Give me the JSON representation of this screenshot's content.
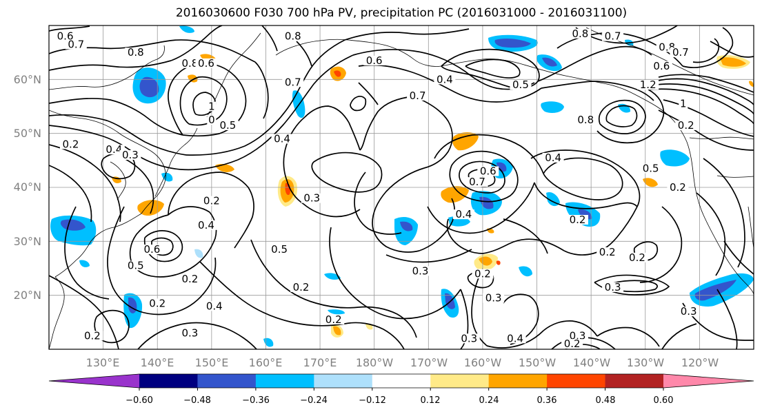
{
  "title": "2016030600 F030 700 hPa PV, precipitation PC (2016031000 - 2016031100)",
  "lat_labels": [
    "60°N",
    "50°N",
    "40°N",
    "30°N",
    "20°N"
  ],
  "lon_labels": [
    "130°E",
    "140°E",
    "150°E",
    "160°E",
    "170°E",
    "180°W",
    "170°W",
    "160°W",
    "150°W",
    "140°W",
    "130°W",
    "120°W"
  ],
  "colorbar": {
    "tick_labels": [
      "−0.60",
      "−0.48",
      "−0.36",
      "−0.24",
      "−0.12",
      "0.12",
      "0.24",
      "0.36",
      "0.48",
      "0.60"
    ],
    "levels": [
      -0.6,
      -0.48,
      -0.36,
      -0.24,
      -0.12,
      0.12,
      0.24,
      0.36,
      0.48,
      0.6
    ],
    "colors": [
      "#9933cc",
      "#000080",
      "#3355cc",
      "#00bfff",
      "#aee0fb",
      "#ffffff",
      "#ffea88",
      "#ffa500",
      "#ff4500",
      "#b22222",
      "#ff88aa"
    ]
  },
  "contour_labels": [
    {
      "text": "0.6",
      "lon": 123,
      "lat": 68
    },
    {
      "text": "0.7",
      "lon": 125,
      "lat": 66.5
    },
    {
      "text": "0.8",
      "lon": 136,
      "lat": 65
    },
    {
      "text": "0.8",
      "lon": 146,
      "lat": 63
    },
    {
      "text": "0.6",
      "lon": 149,
      "lat": 63
    },
    {
      "text": "0.8",
      "lon": 165,
      "lat": 68
    },
    {
      "text": "0.6",
      "lon": 180,
      "lat": 63.5
    },
    {
      "text": "0.7",
      "lon": 165,
      "lat": 59.5
    },
    {
      "text": "0.4",
      "lon": 193,
      "lat": 60
    },
    {
      "text": "0.7",
      "lon": 188,
      "lat": 57
    },
    {
      "text": "0.5",
      "lon": 207,
      "lat": 59
    },
    {
      "text": "1",
      "lon": 150,
      "lat": 55
    },
    {
      "text": "0",
      "lon": 150,
      "lat": 52.5
    },
    {
      "text": "0.5",
      "lon": 153,
      "lat": 51.5
    },
    {
      "text": "0.4",
      "lon": 163,
      "lat": 49
    },
    {
      "text": "0.2",
      "lon": 124,
      "lat": 48
    },
    {
      "text": "0.4",
      "lon": 132,
      "lat": 47
    },
    {
      "text": "0.3",
      "lon": 135,
      "lat": 46
    },
    {
      "text": "0.2",
      "lon": 150,
      "lat": 37.5
    },
    {
      "text": "0.4",
      "lon": 149,
      "lat": 33
    },
    {
      "text": "0.6",
      "lon": 139,
      "lat": 28.5
    },
    {
      "text": "0.5",
      "lon": 136,
      "lat": 25.5
    },
    {
      "text": "0.2",
      "lon": 146,
      "lat": 23
    },
    {
      "text": "0.4",
      "lon": 150.5,
      "lat": 18
    },
    {
      "text": "0.2",
      "lon": 140,
      "lat": 18.5
    },
    {
      "text": "0.2",
      "lon": 128,
      "lat": 12.5
    },
    {
      "text": "0.3",
      "lon": 146,
      "lat": 13
    },
    {
      "text": "0.3",
      "lon": 168.5,
      "lat": 38
    },
    {
      "text": "0.2",
      "lon": 166.5,
      "lat": 21.5
    },
    {
      "text": "0.5",
      "lon": 162.5,
      "lat": 28.5
    },
    {
      "text": "0.2",
      "lon": 172.5,
      "lat": 15.5
    },
    {
      "text": "0.3",
      "lon": 188.5,
      "lat": 24.5
    },
    {
      "text": "0.7",
      "lon": 199,
      "lat": 41
    },
    {
      "text": "0.4",
      "lon": 196.5,
      "lat": 35
    },
    {
      "text": "0.6",
      "lon": 201,
      "lat": 43
    },
    {
      "text": "0.4",
      "lon": 213,
      "lat": 45.5
    },
    {
      "text": "0.2",
      "lon": 200,
      "lat": 24
    },
    {
      "text": "0.3",
      "lon": 202,
      "lat": 19.5
    },
    {
      "text": "0.3",
      "lon": 197.5,
      "lat": 12
    },
    {
      "text": "0.4",
      "lon": 206,
      "lat": 12
    },
    {
      "text": "0.2",
      "lon": 217.5,
      "lat": 34
    },
    {
      "text": "0.3",
      "lon": 217.5,
      "lat": 12.5
    },
    {
      "text": "0.2",
      "lon": 216.5,
      "lat": 11
    },
    {
      "text": "0.2",
      "lon": 223,
      "lat": 28
    },
    {
      "text": "0.3",
      "lon": 224,
      "lat": 21.5
    },
    {
      "text": "0.2",
      "lon": 228.5,
      "lat": 27
    },
    {
      "text": "0.8",
      "lon": 219,
      "lat": 52.5
    },
    {
      "text": "0.5",
      "lon": 231,
      "lat": 43.5
    },
    {
      "text": "0.2",
      "lon": 237.5,
      "lat": 51.5
    },
    {
      "text": "0.2",
      "lon": 236,
      "lat": 40
    },
    {
      "text": "0.3",
      "lon": 238,
      "lat": 17
    },
    {
      "text": "1.2",
      "lon": 230.5,
      "lat": 59
    },
    {
      "text": "1",
      "lon": 237,
      "lat": 55.5
    },
    {
      "text": "0.8",
      "lon": 218,
      "lat": 68.5
    },
    {
      "text": "0.7",
      "lon": 224,
      "lat": 68
    },
    {
      "text": "0.8",
      "lon": 234,
      "lat": 66
    },
    {
      "text": "0.7",
      "lon": 236.5,
      "lat": 65
    },
    {
      "text": "0.6",
      "lon": 233,
      "lat": 62.5
    }
  ]
}
